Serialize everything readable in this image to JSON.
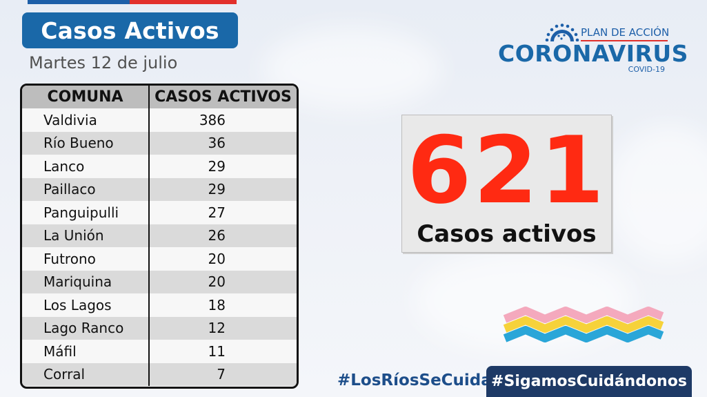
{
  "header": {
    "title": "Casos Activos",
    "date": "Martes 12 de julio"
  },
  "table": {
    "columns": [
      "COMUNA",
      "CASOS ACTIVOS"
    ],
    "rows": [
      {
        "comuna": "Valdivia",
        "casos": "386"
      },
      {
        "comuna": "Río Bueno",
        "casos": "36"
      },
      {
        "comuna": "Lanco",
        "casos": "29"
      },
      {
        "comuna": "Paillaco",
        "casos": "29"
      },
      {
        "comuna": "Panguipulli",
        "casos": "27"
      },
      {
        "comuna": "La Unión",
        "casos": "26"
      },
      {
        "comuna": "Futrono",
        "casos": "20"
      },
      {
        "comuna": "Mariquina",
        "casos": "20"
      },
      {
        "comuna": "Los Lagos",
        "casos": "18"
      },
      {
        "comuna": "Lago Ranco",
        "casos": "12"
      },
      {
        "comuna": "Máfil",
        "casos": "11"
      },
      {
        "comuna": "Corral",
        "casos": "7"
      }
    ]
  },
  "logo": {
    "plan": "PLAN DE ACCIÓN",
    "name": "CORONAVIRUS",
    "sub": "COVID-19",
    "icon": "virus-icon"
  },
  "summary": {
    "total": "621",
    "label": "Casos activos"
  },
  "footer": {
    "hashtag1": "#LosRíosSeCuida",
    "hashtag2": "#SigamosCuidándonos"
  },
  "colors": {
    "brand_blue": "#1a68a8",
    "accent_red": "#e2302b",
    "number_red": "#ff2a12",
    "dark_navy": "#1e3a66"
  }
}
